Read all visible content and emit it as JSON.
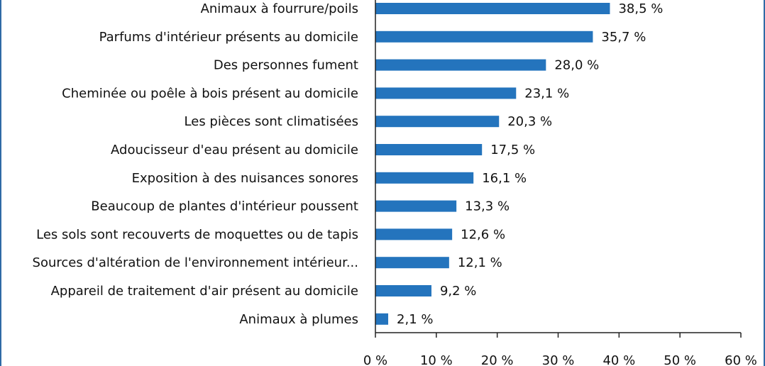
{
  "chart_data": {
    "type": "bar",
    "orientation": "horizontal",
    "categories": [
      "Animaux à fourrure/poils",
      "Parfums d'intérieur présents au domicile",
      "Des personnes fument",
      "Cheminée ou poêle à bois présent au domicile",
      "Les pièces sont climatisées",
      "Adoucisseur d'eau présent au domicile",
      "Exposition à des nuisances sonores",
      "Beaucoup de plantes d'intérieur poussent",
      "Les sols sont recouverts de moquettes ou de tapis",
      "Sources d'altération de l'environnement intérieur...",
      "Appareil de traitement d'air présent au domicile",
      "Animaux à plumes"
    ],
    "values": [
      38.5,
      35.7,
      28.0,
      23.1,
      20.3,
      17.5,
      16.1,
      13.3,
      12.6,
      12.1,
      9.2,
      2.1
    ],
    "value_labels": [
      "38,5 %",
      "35,7 %",
      "28,0 %",
      "23,1 %",
      "20,3 %",
      "17,5 %",
      "16,1 %",
      "13,3 %",
      "12,6 %",
      "12,1 %",
      "9,2 %",
      "2,1 %"
    ],
    "xlim": [
      0,
      60
    ],
    "xticks": [
      0,
      10,
      20,
      30,
      40,
      50,
      60
    ],
    "xtick_labels": [
      "0 %",
      "10 %",
      "20 %",
      "30 %",
      "40 %",
      "50 %",
      "60 %"
    ],
    "title": "",
    "xlabel": "",
    "ylabel": "",
    "grid": false,
    "legend": "none",
    "bar_color": "#2474bd",
    "axis_color": "#222222"
  }
}
